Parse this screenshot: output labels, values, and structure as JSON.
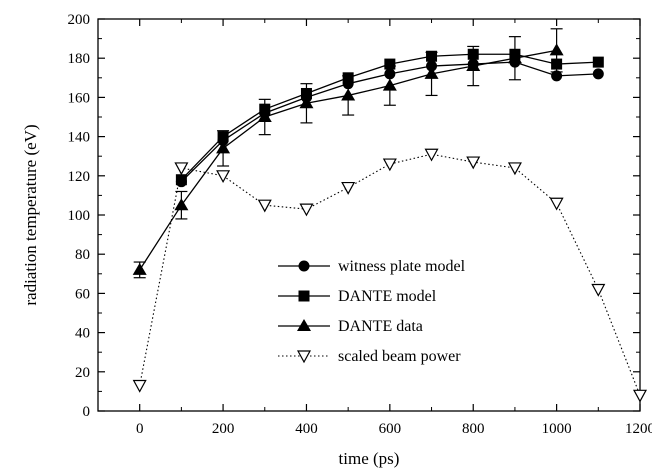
{
  "chart_data": {
    "type": "line",
    "title": "",
    "xlabel": "time (ps)",
    "ylabel": "radiation temperature (eV)",
    "xlim": [
      -100,
      1200
    ],
    "ylim": [
      0,
      200
    ],
    "x_ticks": [
      0,
      200,
      400,
      600,
      800,
      1000,
      1200
    ],
    "y_ticks": [
      0,
      20,
      40,
      60,
      80,
      100,
      120,
      140,
      160,
      180,
      200
    ],
    "grid": false,
    "legend_position": "center-right",
    "series": [
      {
        "name": "witness plate model",
        "marker": "filled-circle",
        "line": "solid",
        "x": [
          100,
          200,
          300,
          400,
          500,
          600,
          700,
          800,
          900,
          1000,
          1100
        ],
        "y": [
          117,
          138,
          152,
          160,
          167,
          172,
          176,
          177,
          178,
          171,
          172
        ]
      },
      {
        "name": "DANTE model",
        "marker": "filled-square",
        "line": "solid",
        "x": [
          100,
          200,
          300,
          400,
          500,
          600,
          700,
          800,
          900,
          1000,
          1100
        ],
        "y": [
          118,
          140,
          154,
          162,
          170,
          177,
          181,
          182,
          182,
          177,
          178
        ]
      },
      {
        "name": "DANTE data",
        "marker": "filled-triangle",
        "line": "solid",
        "x": [
          0,
          100,
          200,
          300,
          400,
          500,
          600,
          700,
          800,
          900,
          1000
        ],
        "y": [
          72,
          105,
          134,
          150,
          157,
          161,
          166,
          172,
          176,
          180,
          184
        ],
        "error": [
          4,
          7,
          9,
          9,
          10,
          10,
          10,
          11,
          10,
          11,
          11
        ]
      },
      {
        "name": "scaled beam power",
        "marker": "open-triangle-down",
        "line": "dotted",
        "x": [
          0,
          100,
          200,
          300,
          400,
          500,
          600,
          700,
          800,
          900,
          1000,
          1100,
          1200
        ],
        "y": [
          13,
          124,
          120,
          105,
          103,
          114,
          126,
          131,
          127,
          124,
          106,
          62,
          8
        ]
      }
    ]
  },
  "colors": {
    "ink": "#000000",
    "background": "#ffffff"
  }
}
